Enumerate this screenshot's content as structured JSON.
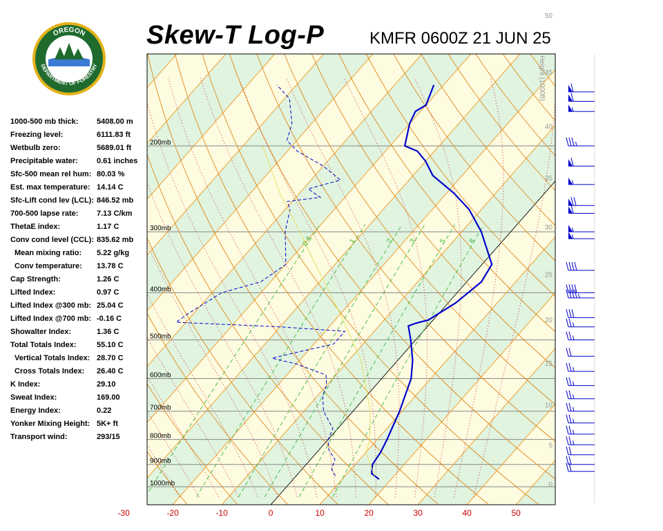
{
  "header": {
    "title": "Skew-T Log-P",
    "station_time": "KMFR 0600Z 21 JUN 25"
  },
  "logo": {
    "top_text": "OREGON",
    "ring_text": "DEPARTMENT OF FORESTRY",
    "ring_color": "#1f6b2e",
    "gold_color": "#e3b21b"
  },
  "indices": [
    {
      "label": "1000-500 mb thick:",
      "value": "5408.00 m"
    },
    {
      "label": "Freezing level:",
      "value": "6111.83 ft"
    },
    {
      "label": "Wetbulb zero:",
      "value": "5689.01 ft"
    },
    {
      "label": "Precipitable water:",
      "value": "0.61 inches"
    },
    {
      "label": "Sfc-500 mean rel hum:",
      "value": "80.03 %"
    },
    {
      "label": "Est. max temperature:",
      "value": "14.14 C"
    },
    {
      "label": "Sfc-Lift cond lev (LCL):",
      "value": "846.52 mb"
    },
    {
      "label": "700-500 lapse rate:",
      "value": "7.13 C/km"
    },
    {
      "label": "ThetaE index:",
      "value": "1.17 C"
    },
    {
      "label": "Conv cond level (CCL):",
      "value": "835.62 mb"
    },
    {
      "label": "Mean mixing ratio:",
      "value": "5.22 g/kg",
      "indent": true
    },
    {
      "label": "Conv temperature:",
      "value": "13.78 C",
      "indent": true
    },
    {
      "label": "Cap Strength:",
      "value": "1.26 C"
    },
    {
      "label": "Lifted Index:",
      "value": "0.97 C"
    },
    {
      "label": "Lifted Index @300 mb:",
      "value": "25.04 C"
    },
    {
      "label": "Lifted Index @700 mb:",
      "value": "-0.16 C"
    },
    {
      "label": "Showalter Index:",
      "value": "1.36 C"
    },
    {
      "label": "Total Totals Index:",
      "value": "55.10 C"
    },
    {
      "label": "Vertical Totals Index:",
      "value": "28.70 C",
      "indent": true
    },
    {
      "label": "Cross Totals Index:",
      "value": "26.40 C",
      "indent": true
    },
    {
      "label": "K Index:",
      "value": "29.10"
    },
    {
      "label": "Sweat Index:",
      "value": "169.00"
    },
    {
      "label": "Energy Index:",
      "value": "0.22"
    },
    {
      "label": "Yonker Mixing Height:",
      "value": "5K+ ft"
    },
    {
      "label": "Transport wind:",
      "value": "293/15"
    }
  ],
  "chart_data": {
    "type": "line",
    "chart_kind": "skew-t log-p",
    "x_unit": "C",
    "x_ticks": [
      -30,
      -20,
      -10,
      0,
      10,
      20,
      30,
      40,
      50
    ],
    "x_tick_labels": [
      "-30",
      "-20",
      "-10",
      "0",
      "10",
      "20",
      "30",
      "40",
      "50"
    ],
    "y_scale": "log-pressure",
    "y_ticks": [
      1000,
      900,
      800,
      700,
      600,
      500,
      400,
      300,
      200
    ],
    "y_tick_labels": [
      "1000mb",
      "900mb",
      "800mb",
      "700mb",
      "600mb",
      "500mb",
      "400mb",
      "300mb",
      "200mb"
    ],
    "height_axis_label": "Height (1000ft)",
    "height_ticks": [
      "0",
      "5",
      "10",
      "15",
      "20",
      "25",
      "30",
      "35",
      "40",
      "45",
      "50"
    ],
    "mixing_ratio_labels": [
      "0.4",
      "1",
      "2",
      "3",
      "5",
      "8"
    ],
    "series": [
      {
        "role": "temperature",
        "color": "#0000cc",
        "points": [
          {
            "p": 965,
            "t": 17.5
          },
          {
            "p": 940,
            "t": 15
          },
          {
            "p": 900,
            "t": 13.5
          },
          {
            "p": 850,
            "t": 13
          },
          {
            "p": 800,
            "t": 12
          },
          {
            "p": 700,
            "t": 9.5
          },
          {
            "p": 600,
            "t": 6
          },
          {
            "p": 550,
            "t": 3
          },
          {
            "p": 500,
            "t": -1
          },
          {
            "p": 468,
            "t": -4
          },
          {
            "p": 462,
            "t": -3
          },
          {
            "p": 455,
            "t": -1
          },
          {
            "p": 420,
            "t": 1.5
          },
          {
            "p": 380,
            "t": 3
          },
          {
            "p": 350,
            "t": 2
          },
          {
            "p": 300,
            "t": -6
          },
          {
            "p": 270,
            "t": -12.5
          },
          {
            "p": 250,
            "t": -18.5
          },
          {
            "p": 230,
            "t": -26
          },
          {
            "p": 215,
            "t": -30
          },
          {
            "p": 205,
            "t": -33.5
          },
          {
            "p": 200,
            "t": -37
          },
          {
            "p": 180,
            "t": -40
          },
          {
            "p": 170,
            "t": -41
          },
          {
            "p": 165,
            "t": -40
          },
          {
            "p": 150,
            "t": -42
          }
        ]
      },
      {
        "role": "dewpoint",
        "color": "#0000cc",
        "dashed": true,
        "points": [
          {
            "p": 950,
            "t": 8
          },
          {
            "p": 920,
            "t": 6
          },
          {
            "p": 880,
            "t": 5
          },
          {
            "p": 840,
            "t": 2
          },
          {
            "p": 800,
            "t": 0
          },
          {
            "p": 760,
            "t": -1
          },
          {
            "p": 700,
            "t": -6
          },
          {
            "p": 650,
            "t": -9
          },
          {
            "p": 620,
            "t": -10
          },
          {
            "p": 590,
            "t": -12
          },
          {
            "p": 560,
            "t": -20
          },
          {
            "p": 545,
            "t": -26
          },
          {
            "p": 530,
            "t": -22
          },
          {
            "p": 510,
            "t": -16
          },
          {
            "p": 480,
            "t": -16
          },
          {
            "p": 470,
            "t": -30
          },
          {
            "p": 460,
            "t": -52
          },
          {
            "p": 440,
            "t": -51
          },
          {
            "p": 400,
            "t": -48
          },
          {
            "p": 380,
            "t": -42
          },
          {
            "p": 350,
            "t": -40
          },
          {
            "p": 300,
            "t": -46
          },
          {
            "p": 270,
            "t": -49
          },
          {
            "p": 260,
            "t": -51
          },
          {
            "p": 255,
            "t": -45
          },
          {
            "p": 245,
            "t": -49
          },
          {
            "p": 235,
            "t": -44
          },
          {
            "p": 220,
            "t": -50
          },
          {
            "p": 205,
            "t": -58
          },
          {
            "p": 195,
            "t": -62
          },
          {
            "p": 180,
            "t": -64
          },
          {
            "p": 160,
            "t": -69
          },
          {
            "p": 150,
            "t": -74
          }
        ]
      },
      {
        "role": "parcel",
        "color": "#e8e060",
        "points": [
          {
            "p": 950,
            "t": 16
          },
          {
            "p": 850,
            "t": 10
          },
          {
            "p": 800,
            "t": 8.5
          },
          {
            "p": 700,
            "t": 3.5
          },
          {
            "p": 600,
            "t": -3.5
          },
          {
            "p": 550,
            "t": -7.5
          },
          {
            "p": 500,
            "t": -13
          },
          {
            "p": 450,
            "t": -19
          },
          {
            "p": 400,
            "t": -26
          },
          {
            "p": 350,
            "t": -34
          },
          {
            "p": 300,
            "t": -43
          },
          {
            "p": 250,
            "t": -54
          },
          {
            "p": 200,
            "t": -66
          }
        ]
      }
    ],
    "wind_barbs": [
      {
        "p": 155,
        "dir": 270,
        "speed": 60
      },
      {
        "p": 162,
        "dir": 270,
        "speed": 60
      },
      {
        "p": 170,
        "dir": 270,
        "speed": 55
      },
      {
        "p": 200,
        "dir": 270,
        "speed": 35
      },
      {
        "p": 220,
        "dir": 270,
        "speed": 60
      },
      {
        "p": 240,
        "dir": 270,
        "speed": 55
      },
      {
        "p": 265,
        "dir": 270,
        "speed": 70
      },
      {
        "p": 275,
        "dir": 270,
        "speed": 60
      },
      {
        "p": 300,
        "dir": 270,
        "speed": 55
      },
      {
        "p": 310,
        "dir": 270,
        "speed": 55
      },
      {
        "p": 360,
        "dir": 270,
        "speed": 40
      },
      {
        "p": 400,
        "dir": 270,
        "speed": 40
      },
      {
        "p": 410,
        "dir": 270,
        "speed": 45
      },
      {
        "p": 450,
        "dir": 290,
        "speed": 30
      },
      {
        "p": 470,
        "dir": 300,
        "speed": 25
      },
      {
        "p": 500,
        "dir": 300,
        "speed": 25
      },
      {
        "p": 540,
        "dir": 290,
        "speed": 20
      },
      {
        "p": 580,
        "dir": 290,
        "speed": 25
      },
      {
        "p": 620,
        "dir": 290,
        "speed": 25
      },
      {
        "p": 660,
        "dir": 290,
        "speed": 25
      },
      {
        "p": 700,
        "dir": 290,
        "speed": 25
      },
      {
        "p": 740,
        "dir": 290,
        "speed": 25
      },
      {
        "p": 780,
        "dir": 290,
        "speed": 25
      },
      {
        "p": 820,
        "dir": 290,
        "speed": 25
      },
      {
        "p": 860,
        "dir": 290,
        "speed": 20
      },
      {
        "p": 900,
        "dir": 290,
        "speed": 20
      },
      {
        "p": 930,
        "dir": 290,
        "speed": 20
      }
    ],
    "colors": {
      "isotherm": "#f0a030",
      "dry_adiabat": "#e08818",
      "moist_adiabat": "#cc0000",
      "mixing_ratio": "#3cb83c",
      "axis_labels": "#cc0000",
      "band_green": "#e0f4e0",
      "band_yellow": "#fdfbe0",
      "isobar": "#888888"
    }
  }
}
